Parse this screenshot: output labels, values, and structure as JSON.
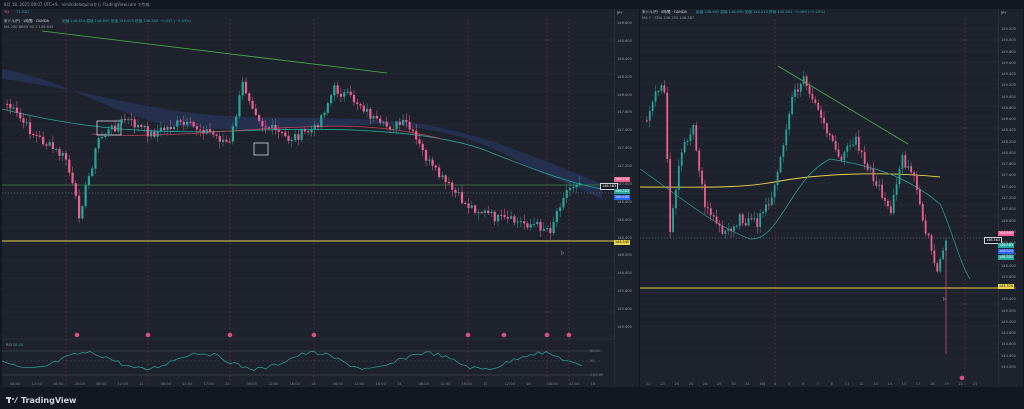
{
  "topbar": {
    "text": "8月 18, 2025 08:07 UTC+9、nimikidelaquinaから TradingView.com で作成"
  },
  "left_chart": {
    "ticker_box": "YD",
    "ticker_box2": "71.02D",
    "legend1": "米ドル/円 · 1時間 · OANDA",
    "legend1_ohlc": "始値 146.619  高値 146.650  安値 146.523  終値 146.583  −0.037 (−0.03%)",
    "legend2": "MA 200 BBOY 95.1  146.845",
    "currency": "JPY",
    "price_labels": [
      "148.800",
      "148.600",
      "148.400",
      "148.200",
      "148.000",
      "147.800",
      "147.600",
      "147.400",
      "147.200",
      "147.000",
      "146.800",
      "146.600",
      "146.400",
      "146.200",
      "146.000",
      "145.800",
      "145.600",
      "145.400"
    ],
    "tags": {
      "red": "146.550",
      "green1": "146.583",
      "dark": "146.583",
      "blue": "146.484",
      "yellow": "146.545"
    },
    "time_labels": [
      "08:00",
      "12:00",
      "16:00",
      "20:00",
      "08:00",
      "12:00",
      "11",
      "06:00",
      "12:00",
      "17:00",
      "12",
      "08:00",
      "12:00",
      "16:00",
      "13",
      "08:00",
      "12:00",
      "18:00",
      "14",
      "08:00",
      "12:00",
      "16:00",
      "17",
      "12:00",
      "18",
      "08:00",
      "12:00",
      "18"
    ],
    "indicator": {
      "name": "RSI",
      "value": "58.20",
      "levels": [
        "80.00",
        "50",
        "0.00 00"
      ]
    }
  },
  "right_chart": {
    "legend1": "米ドル/円 · 4時間 · OANDA",
    "legend1_ohlc": "始値 146.962  高値 146.990  安値 146.515  終値 146.583  −0.369 (−0.25%)",
    "legend2": "MA 7 · SMA  146.253  146.587",
    "currency": "JPY",
    "price_labels": [
      "150.200",
      "150.000",
      "149.800",
      "149.600",
      "149.400",
      "149.200",
      "149.000",
      "148.800",
      "148.600",
      "148.400",
      "148.200",
      "148.000",
      "147.800",
      "147.600",
      "147.400",
      "147.200",
      "147.000",
      "146.800",
      "146.600",
      "146.400",
      "146.200",
      "146.000",
      "145.800",
      "145.600",
      "145.400",
      "145.200",
      "145.000",
      "144.800",
      "144.600",
      "144.400",
      "144.200"
    ],
    "tags": {
      "red": "146.659",
      "green1": "146.583",
      "dark": "146.583",
      "blue": "146.524",
      "green2": "146.331",
      "yellow": "145.524"
    },
    "time_labels": [
      "22",
      "23",
      "24",
      "25",
      "28",
      "29",
      "30",
      "31",
      "8月",
      "4",
      "5",
      "6",
      "7",
      "8",
      "11",
      "12",
      "13",
      "14",
      "15",
      "17",
      "18",
      "19",
      "22",
      "23"
    ]
  },
  "colors": {
    "up": "#26a69a",
    "down": "#ef5f8f",
    "yellow": "#e8d44d",
    "bg": "#1e222d",
    "cloud": "#2b3a6a"
  },
  "branding": {
    "name": "TradingView"
  }
}
